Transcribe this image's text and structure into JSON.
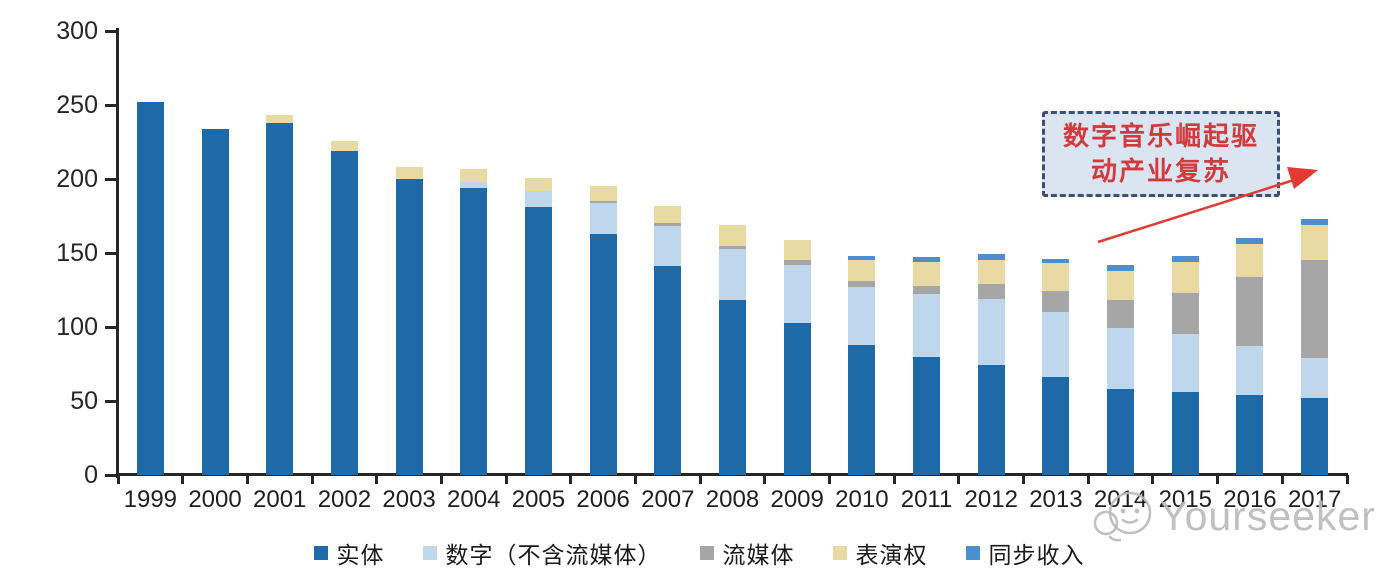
{
  "chart_data": {
    "type": "bar",
    "stacked": true,
    "title": "",
    "xlabel": "",
    "ylabel": "",
    "ylim": [
      0,
      300
    ],
    "yticks": [
      0,
      50,
      100,
      150,
      200,
      250,
      300
    ],
    "grid": false,
    "legend_position": "bottom",
    "categories": [
      "1999",
      "2000",
      "2001",
      "2002",
      "2003",
      "2004",
      "2005",
      "2006",
      "2007",
      "2008",
      "2009",
      "2010",
      "2011",
      "2012",
      "2013",
      "2014",
      "2015",
      "2016",
      "2017"
    ],
    "series": [
      {
        "key": "physical",
        "name": "实体",
        "color": "#1E69A7",
        "values": [
          252,
          234,
          238,
          219,
          200,
          194,
          181,
          163,
          141,
          118,
          103,
          88,
          80,
          74,
          66,
          58,
          56,
          54,
          52
        ]
      },
      {
        "key": "digital",
        "name": "数字（不含流媒体）",
        "color": "#BFD7ED",
        "values": [
          0,
          0,
          0,
          0,
          0,
          4,
          11,
          21,
          27,
          35,
          39,
          39,
          42,
          45,
          44,
          41,
          39,
          33,
          27
        ]
      },
      {
        "key": "streaming",
        "name": "流媒体",
        "color": "#A6A6A6",
        "values": [
          0,
          0,
          0,
          0,
          0,
          0,
          0,
          1,
          2,
          2,
          3,
          4,
          6,
          10,
          14,
          19,
          28,
          47,
          66
        ]
      },
      {
        "key": "performance",
        "name": "表演权",
        "color": "#E9D9A2",
        "values": [
          0,
          0,
          5,
          7,
          8,
          9,
          9,
          10,
          12,
          14,
          14,
          14,
          16,
          16,
          19,
          20,
          21,
          22,
          24
        ]
      },
      {
        "key": "sync",
        "name": "同步收入",
        "color": "#4C8FD1",
        "values": [
          0,
          0,
          0,
          0,
          0,
          0,
          0,
          0,
          0,
          0,
          0,
          3,
          3,
          4,
          3,
          4,
          4,
          4,
          4
        ]
      }
    ],
    "totals": [
      252,
      234,
      243,
      226,
      208,
      207,
      201,
      195,
      182,
      169,
      159,
      148,
      147,
      149,
      146,
      142,
      148,
      160,
      173
    ]
  },
  "axis": {
    "color": "#262626"
  },
  "annotation": {
    "line1": "数字音乐崛起驱",
    "line2": "动产业复苏",
    "text_color": "#D23A3E",
    "border_color": "#3D4F78",
    "fill_color": "#DBE5F2",
    "arrow_color": "#E23B33"
  },
  "watermark": {
    "text": "Yourseeker",
    "color": "#BDBDBD"
  }
}
